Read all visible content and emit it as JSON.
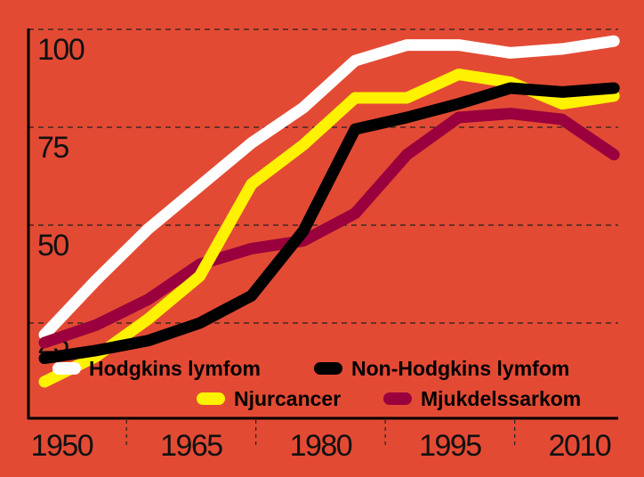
{
  "chart_data": {
    "type": "line",
    "title": "",
    "xlabel": "",
    "ylabel": "",
    "x": [
      1948,
      1954,
      1960,
      1966,
      1972,
      1978,
      1984,
      1990,
      1996,
      2002,
      2008,
      2014
    ],
    "xlim": [
      1946,
      2016
    ],
    "ylim": [
      0,
      100
    ],
    "x_ticks": [
      "1950",
      "1965",
      "1980",
      "1995",
      "2010"
    ],
    "x_tick_values": [
      1950,
      1965,
      1980,
      1995,
      2010
    ],
    "y_ticks": [
      "100",
      "75",
      "50",
      "25"
    ],
    "y_tick_values": [
      100,
      75,
      50,
      25
    ],
    "grid": "horizontal dashed",
    "legend_placement": "bottom-right",
    "background": "#e34a34",
    "series": [
      {
        "name": "Hodgkins lymfom",
        "color": "#ffffff",
        "values": [
          22,
          36,
          49,
          60,
          71,
          80,
          92,
          96,
          96,
          94,
          95,
          97
        ]
      },
      {
        "name": "Mjukdelssarkom",
        "color": "#99003d",
        "values": [
          20,
          24.5,
          31,
          40,
          44,
          46,
          53,
          68,
          77.5,
          78.5,
          77,
          68
        ]
      },
      {
        "name": "Njurcancer",
        "color": "#fff200",
        "values": [
          10,
          16.5,
          26,
          37,
          60.5,
          70.5,
          82.5,
          82.5,
          88.5,
          86.5,
          81,
          83
        ]
      },
      {
        "name": "Non-Hodgkins lymfom",
        "color": "#000000",
        "values": [
          16,
          18,
          20.5,
          25,
          32,
          48.5,
          74.5,
          77.5,
          81,
          85,
          84,
          85
        ]
      }
    ]
  }
}
